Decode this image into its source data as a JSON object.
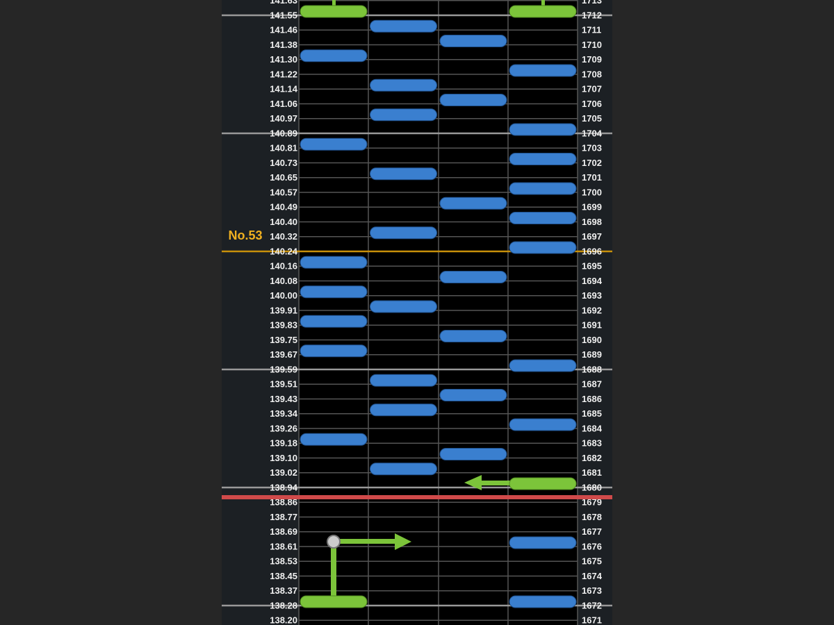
{
  "marker": "No.53",
  "rows": [
    {
      "time": "141.63",
      "beat": "1713"
    },
    {
      "time": "141.55",
      "beat": "1712"
    },
    {
      "time": "141.46",
      "beat": "1711"
    },
    {
      "time": "141.38",
      "beat": "1710"
    },
    {
      "time": "141.30",
      "beat": "1709"
    },
    {
      "time": "141.22",
      "beat": "1708"
    },
    {
      "time": "141.14",
      "beat": "1707"
    },
    {
      "time": "141.06",
      "beat": "1706"
    },
    {
      "time": "140.97",
      "beat": "1705"
    },
    {
      "time": "140.89",
      "beat": "1704"
    },
    {
      "time": "140.81",
      "beat": "1703"
    },
    {
      "time": "140.73",
      "beat": "1702"
    },
    {
      "time": "140.65",
      "beat": "1701"
    },
    {
      "time": "140.57",
      "beat": "1700"
    },
    {
      "time": "140.49",
      "beat": "1699"
    },
    {
      "time": "140.40",
      "beat": "1698"
    },
    {
      "time": "140.32",
      "beat": "1697"
    },
    {
      "time": "140.24",
      "beat": "1696"
    },
    {
      "time": "140.16",
      "beat": "1695"
    },
    {
      "time": "140.08",
      "beat": "1694"
    },
    {
      "time": "140.00",
      "beat": "1693"
    },
    {
      "time": "139.91",
      "beat": "1692"
    },
    {
      "time": "139.83",
      "beat": "1691"
    },
    {
      "time": "139.75",
      "beat": "1690"
    },
    {
      "time": "139.67",
      "beat": "1689"
    },
    {
      "time": "139.59",
      "beat": "1688"
    },
    {
      "time": "139.51",
      "beat": "1687"
    },
    {
      "time": "139.43",
      "beat": "1686"
    },
    {
      "time": "139.34",
      "beat": "1685"
    },
    {
      "time": "139.26",
      "beat": "1684"
    },
    {
      "time": "139.18",
      "beat": "1683"
    },
    {
      "time": "139.10",
      "beat": "1682"
    },
    {
      "time": "139.02",
      "beat": "1681"
    },
    {
      "time": "138.94",
      "beat": "1680"
    },
    {
      "time": "138.86",
      "beat": "1679"
    },
    {
      "time": "138.77",
      "beat": "1678"
    },
    {
      "time": "138.69",
      "beat": "1677"
    },
    {
      "time": "138.61",
      "beat": "1676"
    },
    {
      "time": "138.53",
      "beat": "1675"
    },
    {
      "time": "138.45",
      "beat": "1674"
    },
    {
      "time": "138.37",
      "beat": "1673"
    },
    {
      "time": "138.28",
      "beat": "1672"
    },
    {
      "time": "138.20",
      "beat": "1671"
    }
  ]
}
